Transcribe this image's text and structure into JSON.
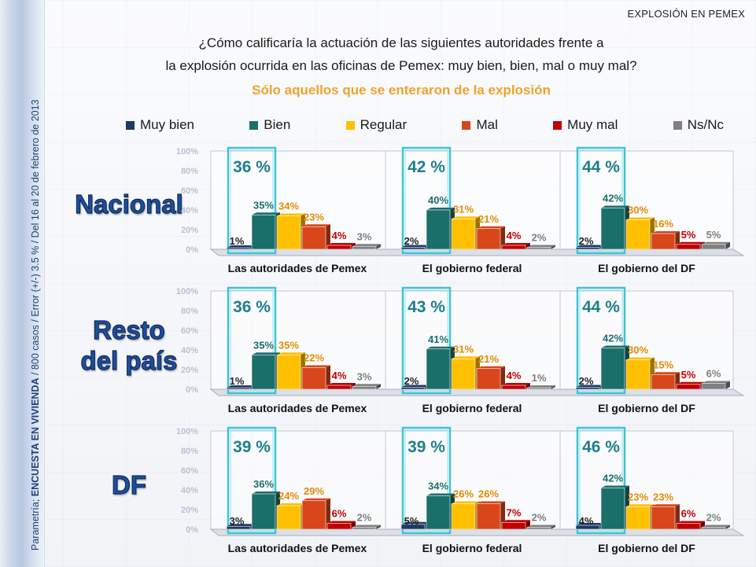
{
  "header": {
    "tag": "EXPLOSIÓN EN PEMEX",
    "question_line1": "¿Cómo calificaría la actuación de las siguientes autoridades frente a",
    "question_line2": "la explosión ocurrida en las oficinas de Pemex: muy bien, bien, mal o muy mal?",
    "subtitle": "Sólo aquellos que se enteraron de la explosión"
  },
  "sidebar": {
    "prefix": "Parametría; ",
    "survey": "ENCUESTA EN VIVIENDA",
    "details": " / 800 casos / Error (+/-) 3.5 % / Del 16 al 20 de febrero de 2013"
  },
  "legend": [
    {
      "label": "Muy bien",
      "color": "#1f3864"
    },
    {
      "label": "Bien",
      "color": "#1a6f6b"
    },
    {
      "label": "Regular",
      "color": "#ffc000"
    },
    {
      "label": "Mal",
      "color": "#d9461a"
    },
    {
      "label": "Muy mal",
      "color": "#c00000"
    },
    {
      "label": "Ns/Nc",
      "color": "#808080"
    }
  ],
  "row_labels": {
    "nacional": "Nacional",
    "resto_line1": "Resto",
    "resto_line2": "del país",
    "df": "DF"
  },
  "chart_data": {
    "type": "bar",
    "categories": [
      "Muy bien",
      "Bien",
      "Regular",
      "Mal",
      "Muy mal",
      "Ns/Nc"
    ],
    "y_axis_ticks": [
      "0%",
      "20%",
      "40%",
      "60%",
      "80%",
      "100%"
    ],
    "ylim": [
      0,
      100
    ],
    "value_colors": [
      "#222222",
      "#1a6f6b",
      "#e68a00",
      "#e68a00",
      "#c00000",
      "#7f7f7f"
    ],
    "rows": [
      {
        "row": "Nacional",
        "panels": [
          {
            "title": "Las autoridades de Pemex",
            "positive_total": "36 %",
            "values": [
              1,
              35,
              34,
              23,
              4,
              3
            ]
          },
          {
            "title": "El gobierno federal",
            "positive_total": "42 %",
            "values": [
              2,
              40,
              31,
              21,
              4,
              2
            ]
          },
          {
            "title": "El gobierno del DF",
            "positive_total": "44 %",
            "values": [
              2,
              42,
              30,
              16,
              5,
              5
            ]
          }
        ]
      },
      {
        "row": "Resto del país",
        "panels": [
          {
            "title": "Las autoridades de Pemex",
            "positive_total": "36 %",
            "values": [
              1,
              35,
              35,
              22,
              4,
              3
            ]
          },
          {
            "title": "El gobierno federal",
            "positive_total": "43 %",
            "values": [
              2,
              41,
              31,
              21,
              4,
              1
            ]
          },
          {
            "title": "El gobierno del DF",
            "positive_total": "44 %",
            "values": [
              2,
              42,
              30,
              15,
              5,
              6
            ]
          }
        ]
      },
      {
        "row": "DF",
        "panels": [
          {
            "title": "Las autoridades de Pemex",
            "positive_total": "39 %",
            "values": [
              3,
              36,
              24,
              29,
              6,
              2
            ]
          },
          {
            "title": "El gobierno federal",
            "positive_total": "39 %",
            "values": [
              5,
              34,
              26,
              26,
              7,
              2
            ]
          },
          {
            "title": "El gobierno del DF",
            "positive_total": "46 %",
            "values": [
              4,
              42,
              23,
              23,
              6,
              2
            ]
          }
        ]
      }
    ]
  }
}
